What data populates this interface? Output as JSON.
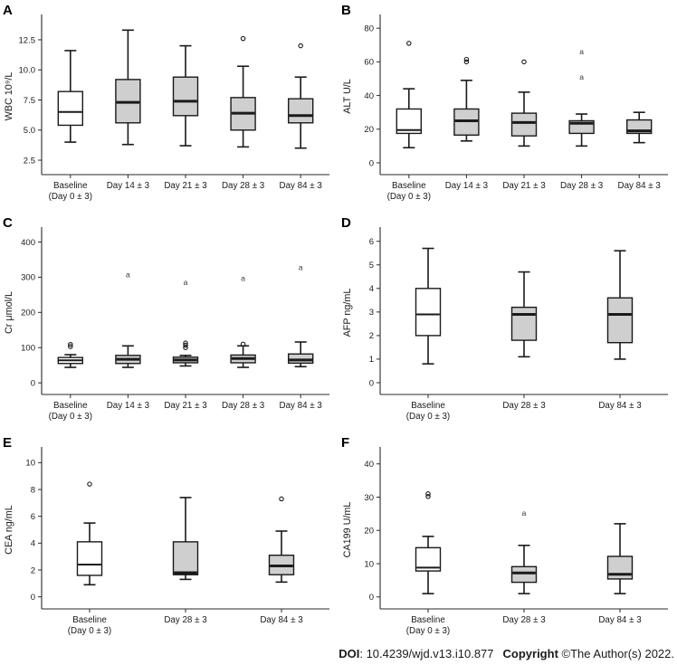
{
  "colors": {
    "box_gray": "#cfcfcf",
    "box_white": "#ffffff",
    "stroke": "#1a1a1a",
    "axis": "#2a2a2a"
  },
  "footer": {
    "doi_label": "DOI",
    "doi_value": ": 10.4239/wjd.v13.i10.877",
    "copyright_label": "Copyright",
    "copyright_value": " ©The Author(s) 2022."
  },
  "chart_data": [
    {
      "id": "A",
      "type": "box",
      "ylabel": "WBC 10⁹/L",
      "ylim": [
        1.3,
        14.3
      ],
      "yticks": [
        2.5,
        5.0,
        7.5,
        10.0,
        12.5
      ],
      "ytick_labels": [
        "2.5",
        "5.0",
        "7.5",
        "10.0",
        "12.5"
      ],
      "categories": [
        [
          "Baseline",
          "(Day 0 ± 3)"
        ],
        [
          "Day 14 ± 3"
        ],
        [
          "Day 21 ± 3"
        ],
        [
          "Day 28 ± 3"
        ],
        [
          "Day 84 ± 3"
        ]
      ],
      "boxes": [
        {
          "low": 4.0,
          "q1": 5.4,
          "median": 6.5,
          "q3": 8.2,
          "high": 11.6,
          "fill": "white",
          "outliers": []
        },
        {
          "low": 3.8,
          "q1": 5.6,
          "median": 7.3,
          "q3": 9.2,
          "high": 13.3,
          "fill": "gray",
          "outliers": []
        },
        {
          "low": 3.7,
          "q1": 6.2,
          "median": 7.4,
          "q3": 9.4,
          "high": 12.0,
          "fill": "gray",
          "outliers": []
        },
        {
          "low": 3.6,
          "q1": 5.0,
          "median": 6.4,
          "q3": 7.7,
          "high": 10.3,
          "fill": "gray",
          "outliers": [
            {
              "value": 12.6,
              "marker": "circle"
            }
          ]
        },
        {
          "low": 3.5,
          "q1": 5.6,
          "median": 6.2,
          "q3": 7.6,
          "high": 9.4,
          "fill": "gray",
          "outliers": [
            {
              "value": 12.0,
              "marker": "circle"
            }
          ]
        }
      ]
    },
    {
      "id": "B",
      "type": "box",
      "ylabel": "ALT U/L",
      "ylim": [
        -7,
        86
      ],
      "yticks": [
        0,
        20,
        40,
        60,
        80
      ],
      "ytick_labels": [
        "0",
        "20",
        "40",
        "60",
        "80"
      ],
      "categories": [
        [
          "Baseline",
          "(Day 0 ± 3)"
        ],
        [
          "Day 14 ± 3"
        ],
        [
          "Day 21 ± 3"
        ],
        [
          "Day 28 ± 3"
        ],
        [
          "Day 84 ± 3"
        ]
      ],
      "boxes": [
        {
          "low": 9,
          "q1": 17.5,
          "median": 19.5,
          "q3": 32,
          "high": 44,
          "fill": "white",
          "outliers": [
            {
              "value": 71,
              "marker": "circle"
            }
          ]
        },
        {
          "low": 13,
          "q1": 16.5,
          "median": 25,
          "q3": 32,
          "high": 49,
          "fill": "gray",
          "outliers": [
            {
              "value": 60,
              "marker": "circle"
            },
            {
              "value": 61.5,
              "marker": "circle"
            }
          ]
        },
        {
          "low": 10,
          "q1": 16,
          "median": 24,
          "q3": 29.5,
          "high": 42,
          "fill": "gray",
          "outliers": [
            {
              "value": 60,
              "marker": "circle"
            }
          ]
        },
        {
          "low": 10,
          "q1": 17.5,
          "median": 23.5,
          "q3": 25,
          "high": 29,
          "fill": "gray",
          "outliers": [
            {
              "value": 51,
              "marker": "a"
            },
            {
              "value": 66,
              "marker": "a"
            }
          ]
        },
        {
          "low": 12,
          "q1": 17.5,
          "median": 19,
          "q3": 25.5,
          "high": 30,
          "fill": "gray",
          "outliers": []
        }
      ]
    },
    {
      "id": "C",
      "type": "box",
      "ylabel": "Cr μmol/L",
      "ylim": [
        -33,
        432
      ],
      "yticks": [
        0,
        100,
        200,
        300,
        400
      ],
      "ytick_labels": [
        "0",
        "100",
        "200",
        "300",
        "400"
      ],
      "categories": [
        [
          "Baseline",
          "(Day 0 ± 3)"
        ],
        [
          "Day 14 ± 3"
        ],
        [
          "Day 21 ± 3"
        ],
        [
          "Day 28 ± 3"
        ],
        [
          "Day 84 ± 3"
        ]
      ],
      "boxes": [
        {
          "low": 44,
          "q1": 55,
          "median": 64,
          "q3": 72,
          "high": 80,
          "fill": "white",
          "outliers": [
            {
              "value": 103,
              "marker": "circle"
            },
            {
              "value": 109,
              "marker": "circle"
            }
          ]
        },
        {
          "low": 44,
          "q1": 55,
          "median": 67,
          "q3": 78,
          "high": 105,
          "fill": "gray",
          "outliers": [
            {
              "value": 308,
              "marker": "a"
            }
          ]
        },
        {
          "low": 48,
          "q1": 57,
          "median": 65,
          "q3": 73,
          "high": 78,
          "fill": "gray",
          "outliers": [
            {
              "value": 100,
              "marker": "circle"
            },
            {
              "value": 107,
              "marker": "circle"
            },
            {
              "value": 113,
              "marker": "circle"
            },
            {
              "value": 285,
              "marker": "a"
            }
          ]
        },
        {
          "low": 44,
          "q1": 57,
          "median": 69,
          "q3": 79,
          "high": 105,
          "fill": "gray",
          "outliers": [
            {
              "value": 110,
              "marker": "circle"
            },
            {
              "value": 297,
              "marker": "a"
            }
          ]
        },
        {
          "low": 46,
          "q1": 56,
          "median": 65,
          "q3": 82,
          "high": 116,
          "fill": "gray",
          "outliers": [
            {
              "value": 328,
              "marker": "a"
            }
          ]
        }
      ]
    },
    {
      "id": "D",
      "type": "box",
      "ylabel": "AFP ng/mL",
      "ylim": [
        -0.5,
        6.45
      ],
      "yticks": [
        0,
        1,
        2,
        3,
        4,
        5,
        6
      ],
      "ytick_labels": [
        "0",
        "1",
        "2",
        "3",
        "4",
        "5",
        "6"
      ],
      "categories": [
        [
          "Baseline",
          "(Day 0 ± 3)"
        ],
        [
          "Day 28 ± 3"
        ],
        [
          "Day 84 ± 3"
        ]
      ],
      "boxes": [
        {
          "low": 0.8,
          "q1": 2.0,
          "median": 2.9,
          "q3": 4.0,
          "high": 5.7,
          "fill": "white",
          "outliers": []
        },
        {
          "low": 1.1,
          "q1": 1.8,
          "median": 2.9,
          "q3": 3.2,
          "high": 4.7,
          "fill": "gray",
          "outliers": []
        },
        {
          "low": 1.0,
          "q1": 1.7,
          "median": 2.9,
          "q3": 3.6,
          "high": 5.6,
          "fill": "gray",
          "outliers": []
        }
      ]
    },
    {
      "id": "E",
      "type": "box",
      "ylabel": "CEA ng/mL",
      "ylim": [
        -0.9,
        10.9
      ],
      "yticks": [
        0,
        2,
        4,
        6,
        8,
        10
      ],
      "ytick_labels": [
        "0",
        "2",
        "4",
        "6",
        "8",
        "10"
      ],
      "categories": [
        [
          "Baseline",
          "(Day 0 ± 3)"
        ],
        [
          "Day 28 ± 3"
        ],
        [
          "Day 84 ± 3"
        ]
      ],
      "boxes": [
        {
          "low": 0.9,
          "q1": 1.6,
          "median": 2.4,
          "q3": 4.1,
          "high": 5.5,
          "fill": "white",
          "outliers": [
            {
              "value": 8.4,
              "marker": "circle"
            }
          ]
        },
        {
          "low": 1.3,
          "q1": 1.65,
          "median": 1.8,
          "q3": 4.1,
          "high": 7.4,
          "fill": "gray",
          "outliers": []
        },
        {
          "low": 1.1,
          "q1": 1.65,
          "median": 2.3,
          "q3": 3.1,
          "high": 4.9,
          "fill": "gray",
          "outliers": [
            {
              "value": 7.3,
              "marker": "circle"
            }
          ]
        }
      ]
    },
    {
      "id": "F",
      "type": "box",
      "ylabel": "CA199 U/mL",
      "ylim": [
        -3.6,
        44
      ],
      "yticks": [
        0,
        10,
        20,
        30,
        40
      ],
      "ytick_labels": [
        "0",
        "10",
        "20",
        "30",
        "40"
      ],
      "categories": [
        [
          "Baseline",
          "(Day 0 ± 3)"
        ],
        [
          "Day 28 ± 3"
        ],
        [
          "Day 84 ± 3"
        ]
      ],
      "boxes": [
        {
          "low": 1.0,
          "q1": 7.8,
          "median": 8.8,
          "q3": 14.8,
          "high": 18.2,
          "fill": "white",
          "outliers": [
            {
              "value": 30.2,
              "marker": "circle"
            },
            {
              "value": 31.0,
              "marker": "circle"
            }
          ]
        },
        {
          "low": 1.0,
          "q1": 4.4,
          "median": 7.2,
          "q3": 9.1,
          "high": 15.5,
          "fill": "gray",
          "outliers": [
            {
              "value": 25.3,
              "marker": "a"
            }
          ]
        },
        {
          "low": 1.0,
          "q1": 5.4,
          "median": 6.8,
          "q3": 12.2,
          "high": 22.0,
          "fill": "gray",
          "outliers": []
        }
      ]
    }
  ]
}
